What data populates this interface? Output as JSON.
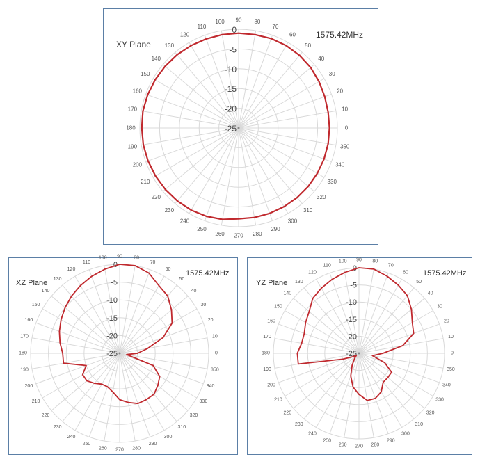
{
  "style": {
    "trace_color": "#c0292e",
    "grid_color": "#d9d9d9",
    "label_color": "#555555",
    "border_color": "#5b7fa6"
  },
  "chart_data": [
    {
      "type": "polar",
      "title": "XY Plane",
      "annotation": "1575.42MHz",
      "r_ticks": [
        "0",
        "-5",
        "-10",
        "-15",
        "-20",
        "-25"
      ],
      "r_range": [
        -25,
        0
      ],
      "angle_ticks": [
        "0",
        "10",
        "20",
        "30",
        "40",
        "50",
        "60",
        "70",
        "80",
        "90",
        "100",
        "110",
        "120",
        "130",
        "140",
        "150",
        "160",
        "170",
        "180",
        "190",
        "200",
        "210",
        "220",
        "230",
        "240",
        "250",
        "260",
        "270",
        "280",
        "290",
        "300",
        "310",
        "320",
        "330",
        "340",
        "350"
      ],
      "series": [
        {
          "theta": [
            0,
            10,
            20,
            30,
            40,
            50,
            60,
            70,
            80,
            90,
            100,
            110,
            120,
            130,
            140,
            150,
            160,
            170,
            180,
            190,
            200,
            210,
            220,
            230,
            240,
            250,
            260,
            270,
            280,
            290,
            300,
            310,
            320,
            330,
            340,
            350
          ],
          "values": [
            -2.0,
            -2.0,
            -1.8,
            -1.5,
            -1.2,
            -1.0,
            -0.9,
            -0.9,
            -1.0,
            -1.0,
            -1.0,
            -1.0,
            -0.9,
            -0.8,
            -0.7,
            -0.6,
            -0.5,
            -0.4,
            -0.5,
            -0.5,
            -0.6,
            -0.7,
            -0.8,
            -0.9,
            -1.0,
            -1.2,
            -1.5,
            -2.0,
            -2.0,
            -2.0,
            -2.0,
            -2.0,
            -2.0,
            -2.0,
            -2.0,
            -2.0
          ]
        }
      ]
    },
    {
      "type": "polar",
      "title": "XZ Plane",
      "annotation": "1575.42MHz",
      "r_ticks": [
        "0",
        "-5",
        "-10",
        "-15",
        "-20",
        "-25"
      ],
      "r_range": [
        -25,
        0
      ],
      "angle_ticks": [
        "0",
        "10",
        "20",
        "30",
        "40",
        "50",
        "60",
        "70",
        "80",
        "90",
        "100",
        "110",
        "120",
        "130",
        "140",
        "150",
        "160",
        "170",
        "180",
        "190",
        "200",
        "210",
        "220",
        "230",
        "240",
        "250",
        "260",
        "270",
        "280",
        "290",
        "300",
        "310",
        "320",
        "330",
        "340",
        "350"
      ],
      "series": [
        {
          "theta": [
            0,
            10,
            20,
            30,
            40,
            50,
            60,
            70,
            80,
            90,
            100,
            110,
            120,
            130,
            140,
            150,
            160,
            170,
            180,
            190,
            200,
            210,
            220,
            230,
            240,
            250,
            260,
            270,
            280,
            290,
            300,
            310,
            320,
            330,
            340,
            350
          ],
          "values": [
            -20.0,
            -17.0,
            -12.0,
            -8.0,
            -6.0,
            -4.0,
            -3.0,
            -1.0,
            0.0,
            0.0,
            -1.0,
            -2.0,
            -3.0,
            -4.0,
            -5.0,
            -6.0,
            -7.0,
            -8.0,
            -9.0,
            -9.0,
            -15.0,
            -13.0,
            -13.0,
            -14.0,
            -15.0,
            -15.0,
            -14.0,
            -12.0,
            -11.0,
            -10.0,
            -10.0,
            -10.0,
            -11.0,
            -12.0,
            -15.0,
            -23.0
          ]
        }
      ]
    },
    {
      "type": "polar",
      "title": "YZ Plane",
      "annotation": "1575.42MHz",
      "r_ticks": [
        "0",
        "-5",
        "-10",
        "-15",
        "-20",
        "-25"
      ],
      "r_range": [
        -25,
        0
      ],
      "angle_ticks": [
        "0",
        "10",
        "20",
        "30",
        "40",
        "50",
        "60",
        "70",
        "80",
        "90",
        "100",
        "110",
        "120",
        "130",
        "140",
        "150",
        "160",
        "170",
        "180",
        "190",
        "200",
        "210",
        "220",
        "230",
        "240",
        "250",
        "260",
        "270",
        "280",
        "290",
        "300",
        "310",
        "320",
        "330",
        "340",
        "350"
      ],
      "series": [
        {
          "theta": [
            0,
            10,
            20,
            30,
            40,
            50,
            60,
            70,
            80,
            90,
            100,
            110,
            120,
            130,
            140,
            150,
            160,
            170,
            180,
            190,
            200,
            210,
            220,
            230,
            240,
            250,
            260,
            270,
            280,
            290,
            300,
            310,
            320,
            330,
            340,
            350
          ],
          "values": [
            -18.0,
            -12.0,
            -8.0,
            -7.0,
            -5.0,
            -3.0,
            -2.0,
            -1.0,
            0.0,
            0.0,
            -1.0,
            -2.0,
            -3.0,
            -4.0,
            -6.0,
            -7.0,
            -8.0,
            -8.0,
            -7.0,
            -7.0,
            -20.0,
            -23.0,
            -24.0,
            -23.0,
            -21.0,
            -18.0,
            -15.0,
            -13.0,
            -11.0,
            -11.0,
            -12.0,
            -14.0,
            -14.0,
            -14.0,
            -17.0,
            -21.0
          ]
        }
      ]
    }
  ]
}
